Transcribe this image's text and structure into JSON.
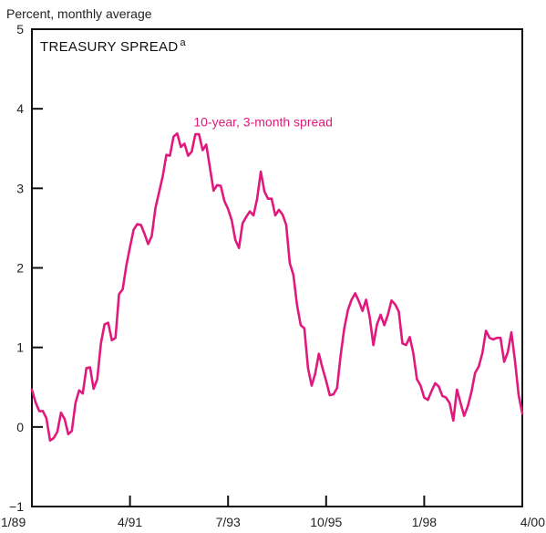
{
  "chart_data": {
    "type": "line",
    "title": "TREASURY SPREAD",
    "title_superscript": "a",
    "ylabel": "Percent, monthly average",
    "xlabel": "",
    "ylim": [
      -1,
      5
    ],
    "y_ticks": [
      -1,
      0,
      1,
      2,
      3,
      4,
      5
    ],
    "y_tick_labels": [
      "−1",
      "0",
      "1",
      "2",
      "3",
      "4",
      "5"
    ],
    "x_tick_labels": [
      "1/89",
      "4/91",
      "7/93",
      "10/95",
      "1/98",
      "4/00"
    ],
    "x_range_months": [
      0,
      135
    ],
    "x_tick_months": [
      0,
      27,
      54,
      81,
      108,
      135
    ],
    "grid": false,
    "legend": "none",
    "colors": {
      "series": "#e0197d",
      "axis": "#111111",
      "background": "#ffffff"
    },
    "series": [
      {
        "name": "10-year, 3-month spread",
        "x": [
          0,
          1,
          2,
          3,
          4,
          5,
          6,
          7,
          8,
          9,
          10,
          11,
          12,
          13,
          14,
          15,
          16,
          17,
          18,
          19,
          20,
          21,
          22,
          23,
          24,
          25,
          26,
          27,
          28,
          29,
          30,
          31,
          32,
          33,
          34,
          35,
          36,
          37,
          38,
          39,
          40,
          41,
          42,
          43,
          44,
          45,
          46,
          47,
          48,
          49,
          50,
          51,
          52,
          53,
          54,
          55,
          56,
          57,
          58,
          59,
          60,
          61,
          62,
          63,
          64,
          65,
          66,
          67,
          68,
          69,
          70,
          71,
          72,
          73,
          74,
          75,
          76,
          77,
          78,
          79,
          80,
          81,
          82,
          83,
          84,
          85,
          86,
          87,
          88,
          89,
          90,
          91,
          92,
          93,
          94,
          95,
          96,
          97,
          98,
          99,
          100,
          101,
          102,
          103,
          104,
          105,
          106,
          107,
          108,
          109,
          110,
          111,
          112,
          113,
          114,
          115,
          116,
          117,
          118,
          119,
          120,
          121,
          122,
          123,
          124,
          125,
          126,
          127,
          128,
          129,
          130,
          131,
          132,
          133,
          134,
          135
        ],
        "values": [
          0.47,
          0.31,
          0.2,
          0.2,
          0.11,
          -0.17,
          -0.14,
          -0.06,
          0.18,
          0.1,
          -0.09,
          -0.05,
          0.3,
          0.46,
          0.42,
          0.74,
          0.75,
          0.48,
          0.6,
          1.05,
          1.29,
          1.31,
          1.09,
          1.12,
          1.67,
          1.73,
          2.03,
          2.26,
          2.48,
          2.55,
          2.54,
          2.43,
          2.3,
          2.4,
          2.75,
          2.95,
          3.15,
          3.42,
          3.41,
          3.65,
          3.69,
          3.52,
          3.56,
          3.41,
          3.46,
          3.68,
          3.68,
          3.48,
          3.55,
          3.26,
          2.97,
          3.04,
          3.03,
          2.84,
          2.74,
          2.6,
          2.35,
          2.25,
          2.56,
          2.64,
          2.71,
          2.66,
          2.87,
          3.21,
          2.96,
          2.87,
          2.87,
          2.66,
          2.73,
          2.67,
          2.54,
          2.06,
          1.91,
          1.53,
          1.28,
          1.24,
          0.74,
          0.52,
          0.67,
          0.92,
          0.74,
          0.58,
          0.4,
          0.41,
          0.49,
          0.9,
          1.24,
          1.47,
          1.6,
          1.68,
          1.58,
          1.46,
          1.6,
          1.38,
          1.03,
          1.29,
          1.41,
          1.28,
          1.41,
          1.59,
          1.54,
          1.45,
          1.05,
          1.03,
          1.13,
          0.93,
          0.6,
          0.52,
          0.37,
          0.34,
          0.45,
          0.55,
          0.51,
          0.39,
          0.37,
          0.3,
          0.08,
          0.47,
          0.3,
          0.14,
          0.26,
          0.44,
          0.68,
          0.76,
          0.93,
          1.21,
          1.12,
          1.1,
          1.12,
          1.12,
          0.82,
          0.94,
          1.19,
          0.83,
          0.4,
          0.17
        ]
      }
    ],
    "annotations": [
      {
        "text": "10-year, 3-month spread",
        "x_month": 44.5,
        "y": 3.78
      }
    ]
  }
}
